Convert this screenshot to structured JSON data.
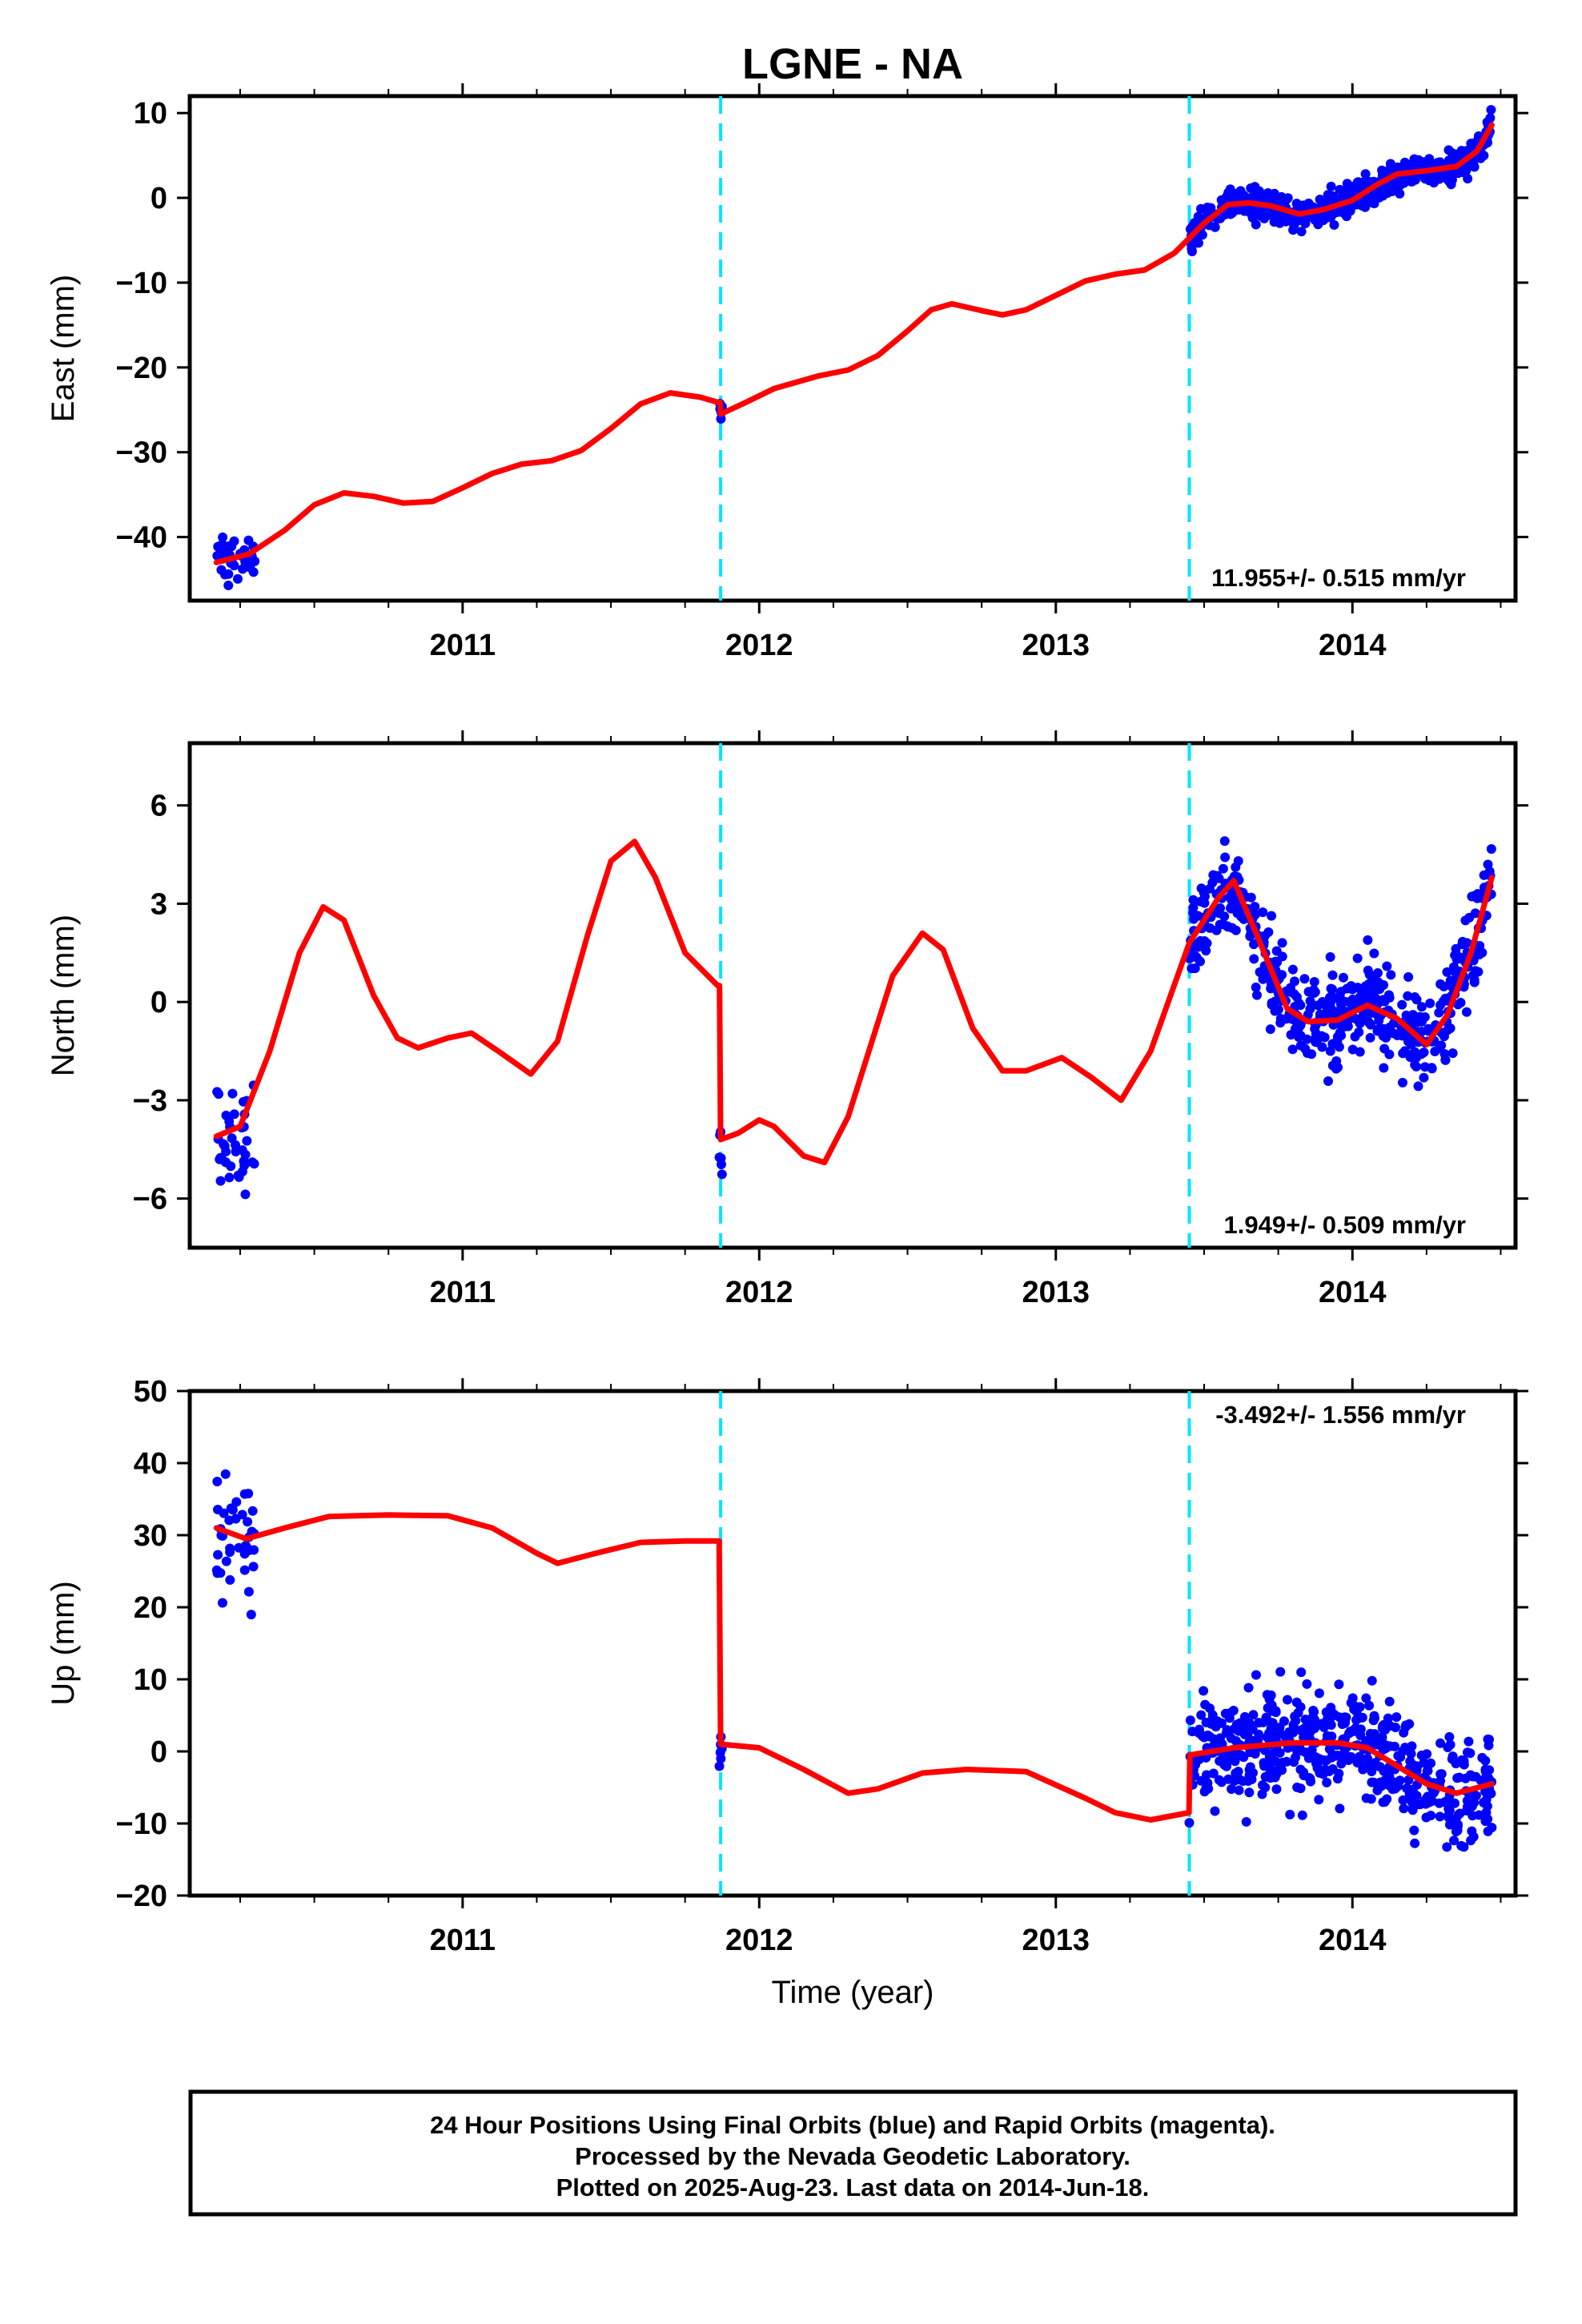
{
  "title": "LGNE - NA",
  "colors": {
    "data": "#0000ff",
    "model": "#ff0000",
    "offset": "#00e5ff",
    "frame": "#000000"
  },
  "chart_data": [
    {
      "type": "scatter",
      "ylabel": "East (mm)",
      "xlabel": "",
      "xlim": [
        2010.08,
        2014.55
      ],
      "ylim": [
        -47.5,
        12
      ],
      "x_ticks": [
        2011,
        2012,
        2013,
        2014
      ],
      "y_ticks": [
        -40,
        -30,
        -20,
        -10,
        0,
        10
      ],
      "y_tick_labels": [
        "−40",
        "−30",
        "−20",
        "−10",
        "0",
        "10"
      ],
      "rate_text": "11.955+/- 0.515 mm/yr",
      "rate_pos": "bottom-right",
      "offsets": [
        2011.87,
        2013.45
      ],
      "model_knots": [
        [
          2010.17,
          -43
        ],
        [
          2010.28,
          -42
        ],
        [
          2010.4,
          -39.2
        ],
        [
          2010.5,
          -36.2
        ],
        [
          2010.6,
          -34.8
        ],
        [
          2010.7,
          -35.2
        ],
        [
          2010.8,
          -36
        ],
        [
          2010.9,
          -35.8
        ],
        [
          2011.0,
          -34.2
        ],
        [
          2011.1,
          -32.5
        ],
        [
          2011.2,
          -31.4
        ],
        [
          2011.3,
          -31
        ],
        [
          2011.4,
          -29.8
        ],
        [
          2011.5,
          -27.2
        ],
        [
          2011.6,
          -24.3
        ],
        [
          2011.7,
          -23
        ],
        [
          2011.8,
          -23.5
        ],
        [
          2011.86,
          -24.1
        ],
        [
          2011.868,
          -24.1
        ],
        [
          2011.87,
          -25.5
        ],
        [
          2011.95,
          -24.2
        ],
        [
          2012.05,
          -22.5
        ],
        [
          2012.2,
          -21
        ],
        [
          2012.3,
          -20.3
        ],
        [
          2012.4,
          -18.6
        ],
        [
          2012.5,
          -15.7
        ],
        [
          2012.58,
          -13.2
        ],
        [
          2012.65,
          -12.5
        ],
        [
          2012.75,
          -13.3
        ],
        [
          2012.82,
          -13.8
        ],
        [
          2012.9,
          -13.2
        ],
        [
          2013.0,
          -11.5
        ],
        [
          2013.1,
          -9.8
        ],
        [
          2013.2,
          -9
        ],
        [
          2013.3,
          -8.5
        ],
        [
          2013.4,
          -6.5
        ],
        [
          2013.5,
          -3
        ],
        [
          2013.58,
          -0.8
        ],
        [
          2013.65,
          -0.6
        ],
        [
          2013.72,
          -0.9
        ],
        [
          2013.82,
          -1.9
        ],
        [
          2013.9,
          -1.4
        ],
        [
          2014.0,
          -0.3
        ],
        [
          2014.08,
          1.5
        ],
        [
          2014.15,
          2.8
        ],
        [
          2014.25,
          3.2
        ],
        [
          2014.35,
          3.7
        ],
        [
          2014.42,
          5.5
        ],
        [
          2014.47,
          8.6
        ]
      ],
      "point_clusters": [
        {
          "x_range": [
            2010.17,
            2010.3
          ],
          "count": 40,
          "y_center": -42.5,
          "y_spread": 2.3,
          "follow_model": false
        },
        {
          "x_range": [
            2011.865,
            2011.875
          ],
          "count": 5,
          "y_center": -25.3,
          "y_spread": 1.4,
          "follow_model": false
        },
        {
          "x_range": [
            2013.45,
            2014.47
          ],
          "count": 560,
          "y_center": 0,
          "y_spread": 1.3,
          "follow_model": true
        }
      ]
    },
    {
      "type": "scatter",
      "ylabel": "North (mm)",
      "xlabel": "",
      "xlim": [
        2010.08,
        2014.55
      ],
      "ylim": [
        -7.5,
        7.9
      ],
      "x_ticks": [
        2011,
        2012,
        2013,
        2014
      ],
      "y_ticks": [
        -6,
        -3,
        0,
        3,
        6
      ],
      "y_tick_labels": [
        "−6",
        "−3",
        "0",
        "3",
        "6"
      ],
      "rate_text": "1.949+/- 0.509 mm/yr",
      "rate_pos": "bottom-right",
      "offsets": [
        2011.87,
        2013.45
      ],
      "model_knots": [
        [
          2010.17,
          -4.1
        ],
        [
          2010.25,
          -3.8
        ],
        [
          2010.35,
          -1.5
        ],
        [
          2010.45,
          1.5
        ],
        [
          2010.53,
          2.9
        ],
        [
          2010.6,
          2.5
        ],
        [
          2010.7,
          0.2
        ],
        [
          2010.78,
          -1.1
        ],
        [
          2010.85,
          -1.4
        ],
        [
          2010.95,
          -1.1
        ],
        [
          2011.03,
          -0.95
        ],
        [
          2011.12,
          -1.5
        ],
        [
          2011.23,
          -2.2
        ],
        [
          2011.32,
          -1.2
        ],
        [
          2011.42,
          2.0
        ],
        [
          2011.5,
          4.3
        ],
        [
          2011.58,
          4.9
        ],
        [
          2011.65,
          3.8
        ],
        [
          2011.75,
          1.5
        ],
        [
          2011.86,
          0.5
        ],
        [
          2011.866,
          0.5
        ],
        [
          2011.87,
          -4.2
        ],
        [
          2011.93,
          -4.0
        ],
        [
          2012.0,
          -3.6
        ],
        [
          2012.05,
          -3.8
        ],
        [
          2012.15,
          -4.7
        ],
        [
          2012.22,
          -4.9
        ],
        [
          2012.3,
          -3.5
        ],
        [
          2012.45,
          0.8
        ],
        [
          2012.55,
          2.1
        ],
        [
          2012.62,
          1.6
        ],
        [
          2012.72,
          -0.8
        ],
        [
          2012.82,
          -2.1
        ],
        [
          2012.9,
          -2.1
        ],
        [
          2013.02,
          -1.7
        ],
        [
          2013.12,
          -2.3
        ],
        [
          2013.22,
          -3.0
        ],
        [
          2013.32,
          -1.5
        ],
        [
          2013.45,
          1.8
        ],
        [
          2013.55,
          3.2
        ],
        [
          2013.6,
          3.7
        ],
        [
          2013.68,
          2.0
        ],
        [
          2013.78,
          -0.2
        ],
        [
          2013.85,
          -0.6
        ],
        [
          2013.95,
          -0.55
        ],
        [
          2014.05,
          -0.1
        ],
        [
          2014.15,
          -0.5
        ],
        [
          2014.25,
          -1.3
        ],
        [
          2014.32,
          -0.4
        ],
        [
          2014.4,
          1.5
        ],
        [
          2014.47,
          3.8
        ]
      ],
      "point_clusters": [
        {
          "x_range": [
            2010.17,
            2010.3
          ],
          "count": 40,
          "y_center": -4.3,
          "y_spread": 1.4,
          "follow_model": false
        },
        {
          "x_range": [
            2011.865,
            2011.875
          ],
          "count": 6,
          "y_center": -4.5,
          "y_spread": 0.8,
          "follow_model": false
        },
        {
          "x_range": [
            2013.45,
            2014.47
          ],
          "count": 520,
          "y_center": 0,
          "y_spread": 1.0,
          "follow_model": true
        }
      ]
    },
    {
      "type": "scatter",
      "ylabel": "Up (mm)",
      "xlabel": "Time (year)",
      "xlim": [
        2010.08,
        2014.55
      ],
      "ylim": [
        -20,
        50
      ],
      "x_ticks": [
        2011,
        2012,
        2013,
        2014
      ],
      "y_ticks": [
        -20,
        -10,
        0,
        10,
        20,
        30,
        40,
        50
      ],
      "y_tick_labels": [
        "−20",
        "−10",
        "0",
        "10",
        "20",
        "30",
        "40",
        "50"
      ],
      "rate_text": "-3.492+/- 1.556 mm/yr",
      "rate_pos": "top-right",
      "offsets": [
        2011.87,
        2013.45
      ],
      "model_knots": [
        [
          2010.17,
          31
        ],
        [
          2010.27,
          29.5
        ],
        [
          2010.4,
          31
        ],
        [
          2010.55,
          32.6
        ],
        [
          2010.75,
          32.8
        ],
        [
          2010.95,
          32.7
        ],
        [
          2011.1,
          31
        ],
        [
          2011.25,
          27.5
        ],
        [
          2011.32,
          26.1
        ],
        [
          2011.45,
          27.5
        ],
        [
          2011.6,
          29
        ],
        [
          2011.75,
          29.2
        ],
        [
          2011.865,
          29.2
        ],
        [
          2011.87,
          1
        ],
        [
          2012.0,
          0.5
        ],
        [
          2012.15,
          -2.5
        ],
        [
          2012.3,
          -5.8
        ],
        [
          2012.4,
          -5.2
        ],
        [
          2012.55,
          -3
        ],
        [
          2012.7,
          -2.5
        ],
        [
          2012.9,
          -2.8
        ],
        [
          2013.1,
          -6.5
        ],
        [
          2013.2,
          -8.5
        ],
        [
          2013.32,
          -9.5
        ],
        [
          2013.449,
          -8.5
        ],
        [
          2013.452,
          -0.5
        ],
        [
          2013.6,
          0.5
        ],
        [
          2013.8,
          1.2
        ],
        [
          2013.95,
          1.2
        ],
        [
          2014.05,
          0.5
        ],
        [
          2014.15,
          -2
        ],
        [
          2014.25,
          -4.5
        ],
        [
          2014.35,
          -5.8
        ],
        [
          2014.47,
          -4.5
        ]
      ],
      "point_clusters": [
        {
          "x_range": [
            2010.17,
            2010.3
          ],
          "count": 40,
          "y_center": 30,
          "y_spread": 5.5,
          "follow_model": false
        },
        {
          "x_range": [
            2011.865,
            2011.875
          ],
          "count": 6,
          "y_center": 1.5,
          "y_spread": 3.5,
          "follow_model": false
        },
        {
          "x_range": [
            2013.45,
            2014.47
          ],
          "count": 540,
          "y_center": 0,
          "y_spread": 5.0,
          "follow_model": true
        }
      ]
    }
  ],
  "footer": {
    "line1": "24 Hour Positions Using Final Orbits (blue) and Rapid Orbits (magenta).",
    "line2": "Processed by the Nevada Geodetic Laboratory.",
    "line3": "Plotted on 2025-Aug-23. Last data on 2014-Jun-18."
  }
}
